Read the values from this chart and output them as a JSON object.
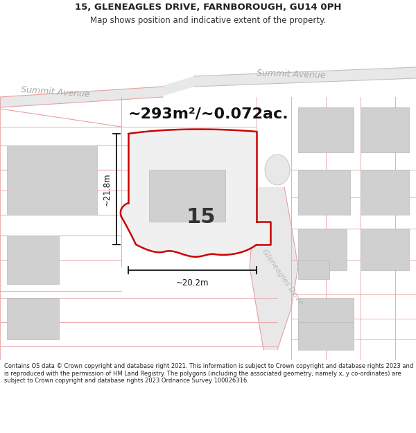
{
  "title_line1": "15, GLENEAGLES DRIVE, FARNBOROUGH, GU14 0PH",
  "title_line2": "Map shows position and indicative extent of the property.",
  "area_text": "~293m²/~0.072ac.",
  "property_number": "15",
  "dim_vertical": "~21.8m",
  "dim_horizontal": "~20.2m",
  "street_label_left": "Summit Avenue",
  "street_label_right": "Summit Avenue",
  "street_label_drive": "Gleneagles Drive",
  "footer_text": "Contains OS data © Crown copyright and database right 2021. This information is subject to Crown copyright and database rights 2023 and is reproduced with the permission of HM Land Registry. The polygons (including the associated geometry, namely x, y co-ordinates) are subject to Crown copyright and database rights 2023 Ordnance Survey 100026316.",
  "title_fontsize": 9.5,
  "subtitle_fontsize": 8.5,
  "area_fontsize": 16,
  "number_fontsize": 22,
  "street_fontsize": 9,
  "dim_fontsize": 8.5,
  "footer_fontsize": 6.0,
  "property_outline_color": "#cc0000",
  "property_fill_color": "#f0f0f0",
  "building_fill": "#d0d0d0",
  "building_edge": "#b8b8b8",
  "road_fill": "#e8e8e8",
  "road_edge": "#c8c8c8",
  "pink_line": "#e8a0a0",
  "gray_line": "#c0c0c0",
  "street_color": "#b0b0b0",
  "dim_color": "#111111",
  "text_color": "#222222"
}
